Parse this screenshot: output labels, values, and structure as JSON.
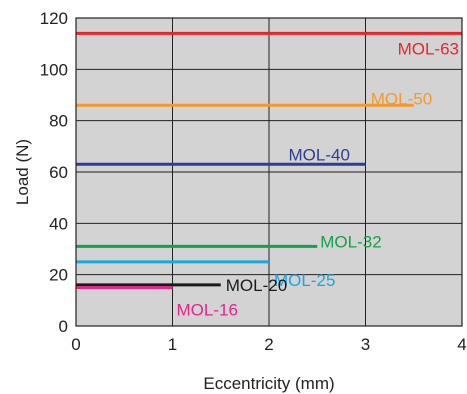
{
  "chart_data": {
    "type": "line",
    "xlabel": "Eccentricity (mm)",
    "ylabel": "Load (N)",
    "xlim": [
      0,
      4
    ],
    "ylim": [
      0,
      120
    ],
    "x_ticks": [
      0,
      1,
      2,
      3,
      4
    ],
    "y_ticks": [
      0,
      20,
      40,
      60,
      80,
      100,
      120
    ],
    "x_tick_labels": [
      "0",
      "1",
      "2",
      "3",
      "4"
    ],
    "y_tick_labels": [
      "0",
      "20",
      "40",
      "60",
      "80",
      "100",
      "120"
    ],
    "grid": true,
    "background": "#d3d3d3",
    "series": [
      {
        "name": "MOL-63",
        "color": "#e8262a",
        "x": [
          0,
          4.0
        ],
        "y": [
          114,
          114
        ]
      },
      {
        "name": "MOL-50",
        "color": "#f39a2b",
        "x": [
          0,
          3.5
        ],
        "y": [
          86,
          86
        ]
      },
      {
        "name": "MOL-40",
        "color": "#2f3e8f",
        "x": [
          0,
          3.0
        ],
        "y": [
          63,
          63
        ]
      },
      {
        "name": "MOL-32",
        "color": "#16a04a",
        "x": [
          0,
          2.5
        ],
        "y": [
          31,
          31
        ]
      },
      {
        "name": "MOL-25",
        "color": "#1aa6df",
        "x": [
          0,
          2.0
        ],
        "y": [
          25,
          25
        ]
      },
      {
        "name": "MOL-20",
        "color": "#1a1a1a",
        "x": [
          0,
          1.5
        ],
        "y": [
          16,
          16
        ]
      },
      {
        "name": "MOL-16",
        "color": "#e0298a",
        "x": [
          0,
          1.0
        ],
        "y": [
          15,
          15
        ]
      }
    ]
  }
}
